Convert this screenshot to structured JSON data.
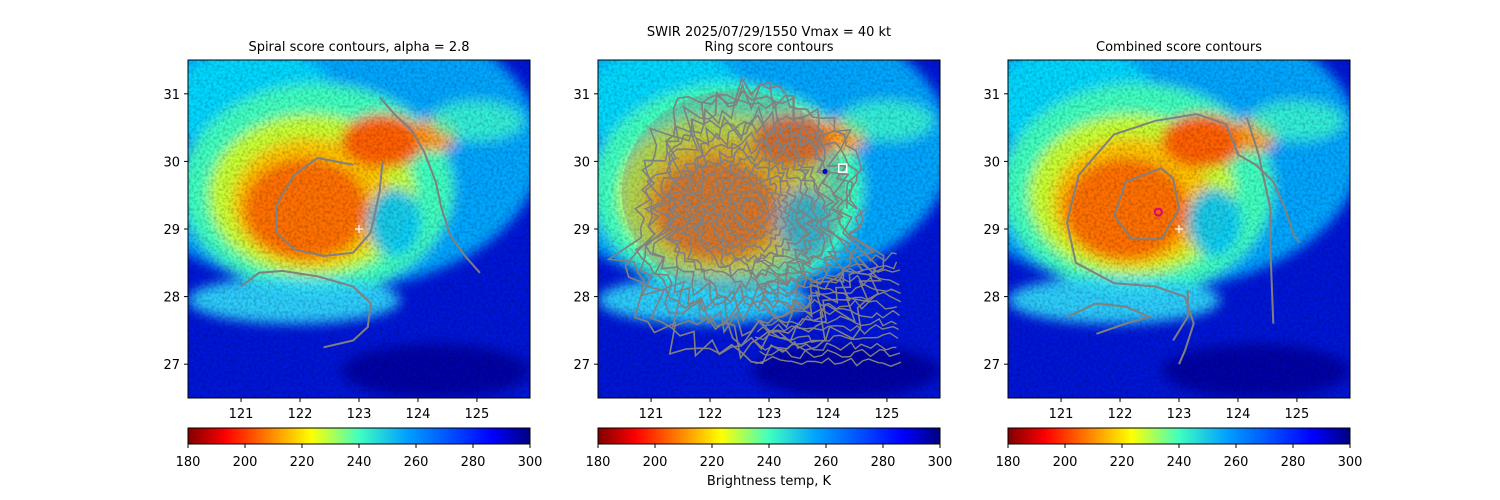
{
  "suptitle": {
    "line1": "SWIR  2025/07/29/1550    Vmax = 40 kt"
  },
  "colorbar": {
    "label": "Brightness temp, K",
    "ticks": [
      180,
      200,
      220,
      240,
      260,
      280,
      300
    ],
    "range": [
      180,
      300
    ],
    "colormap": "jet_r"
  },
  "chart_data": [
    {
      "type": "heatmap",
      "title": "Spiral score contours, alpha =  2.8",
      "xlim": [
        120.1,
        125.9
      ],
      "ylim": [
        26.5,
        31.5
      ],
      "xticks": [
        121,
        122,
        123,
        124,
        125
      ],
      "yticks": [
        27,
        28,
        29,
        30,
        31
      ],
      "grid": false,
      "value": "brightness temperature (K)",
      "contour_color": "#808080",
      "markers": [
        {
          "kind": "plus",
          "lon": 123.0,
          "lat": 29.0,
          "color": "#ffffff"
        }
      ]
    },
    {
      "type": "heatmap",
      "title": "Ring score contours",
      "xlim": [
        120.1,
        125.9
      ],
      "ylim": [
        26.5,
        31.5
      ],
      "xticks": [
        121,
        122,
        123,
        124,
        125
      ],
      "yticks": [
        27,
        28,
        29,
        30,
        31
      ],
      "grid": false,
      "value": "brightness temperature (K)",
      "contour_color": "#808080",
      "markers": [
        {
          "kind": "square",
          "lon": 124.25,
          "lat": 29.9,
          "color": "#ffffff"
        },
        {
          "kind": "dot",
          "lon": 123.95,
          "lat": 29.85,
          "color": "#0000cc"
        }
      ]
    },
    {
      "type": "heatmap",
      "title": "Combined score contours",
      "xlim": [
        120.1,
        125.9
      ],
      "ylim": [
        26.5,
        31.5
      ],
      "xticks": [
        121,
        122,
        123,
        124,
        125
      ],
      "yticks": [
        27,
        28,
        29,
        30,
        31
      ],
      "grid": false,
      "value": "brightness temperature (K)",
      "contour_color": "#808080",
      "markers": [
        {
          "kind": "plus",
          "lon": 123.0,
          "lat": 29.0,
          "color": "#ffffff"
        },
        {
          "kind": "circle",
          "lon": 122.65,
          "lat": 29.25,
          "color": "#e0007a"
        }
      ]
    }
  ]
}
